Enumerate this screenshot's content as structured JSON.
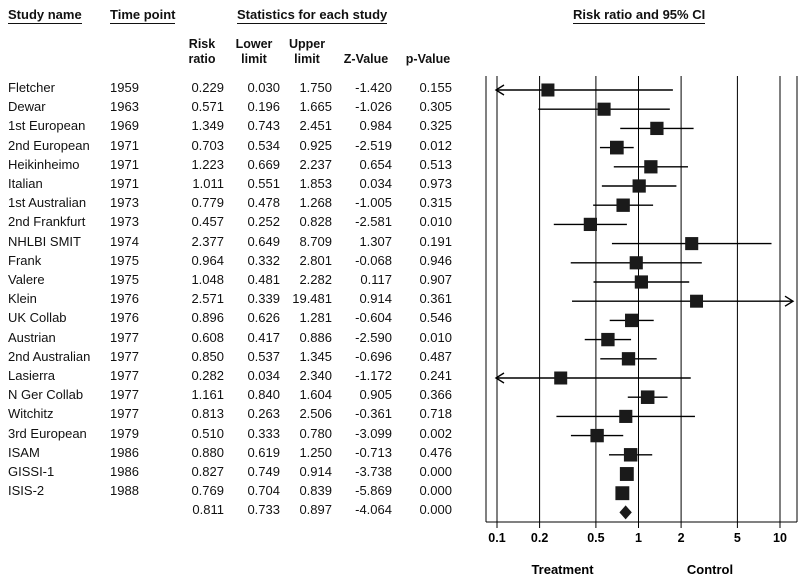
{
  "headers": {
    "study_name": "Study name",
    "time_point": "Time point",
    "statistics": "Statistics for each study",
    "risk_ratio_ci": "Risk ratio and 95% CI",
    "col_rr": [
      "Risk",
      "ratio"
    ],
    "col_lower": [
      "Lower",
      "limit"
    ],
    "col_upper": [
      "Upper",
      "limit"
    ],
    "col_z": "Z-Value",
    "col_p": "p-Value"
  },
  "rows": [
    {
      "name": "Fletcher",
      "year": "1959",
      "rr": "0.229",
      "lower": "0.030",
      "upper": "1.750",
      "z": "-1.420",
      "p": "0.155"
    },
    {
      "name": "Dewar",
      "year": "1963",
      "rr": "0.571",
      "lower": "0.196",
      "upper": "1.665",
      "z": "-1.026",
      "p": "0.305"
    },
    {
      "name": "1st European",
      "year": "1969",
      "rr": "1.349",
      "lower": "0.743",
      "upper": "2.451",
      "z": "0.984",
      "p": "0.325"
    },
    {
      "name": "2nd European",
      "year": "1971",
      "rr": "0.703",
      "lower": "0.534",
      "upper": "0.925",
      "z": "-2.519",
      "p": "0.012"
    },
    {
      "name": "Heikinheimo",
      "year": "1971",
      "rr": "1.223",
      "lower": "0.669",
      "upper": "2.237",
      "z": "0.654",
      "p": "0.513"
    },
    {
      "name": "Italian",
      "year": "1971",
      "rr": "1.011",
      "lower": "0.551",
      "upper": "1.853",
      "z": "0.034",
      "p": "0.973"
    },
    {
      "name": "1st Australian",
      "year": "1973",
      "rr": "0.779",
      "lower": "0.478",
      "upper": "1.268",
      "z": "-1.005",
      "p": "0.315"
    },
    {
      "name": "2nd Frankfurt",
      "year": "1973",
      "rr": "0.457",
      "lower": "0.252",
      "upper": "0.828",
      "z": "-2.581",
      "p": "0.010"
    },
    {
      "name": "NHLBI SMIT",
      "year": "1974",
      "rr": "2.377",
      "lower": "0.649",
      "upper": "8.709",
      "z": "1.307",
      "p": "0.191"
    },
    {
      "name": "Frank",
      "year": "1975",
      "rr": "0.964",
      "lower": "0.332",
      "upper": "2.801",
      "z": "-0.068",
      "p": "0.946"
    },
    {
      "name": "Valere",
      "year": "1975",
      "rr": "1.048",
      "lower": "0.481",
      "upper": "2.282",
      "z": "0.117",
      "p": "0.907"
    },
    {
      "name": "Klein",
      "year": "1976",
      "rr": "2.571",
      "lower": "0.339",
      "upper": "19.481",
      "z": "0.914",
      "p": "0.361"
    },
    {
      "name": "UK Collab",
      "year": "1976",
      "rr": "0.896",
      "lower": "0.626",
      "upper": "1.281",
      "z": "-0.604",
      "p": "0.546"
    },
    {
      "name": "Austrian",
      "year": "1977",
      "rr": "0.608",
      "lower": "0.417",
      "upper": "0.886",
      "z": "-2.590",
      "p": "0.010"
    },
    {
      "name": "2nd Australian",
      "year": "1977",
      "rr": "0.850",
      "lower": "0.537",
      "upper": "1.345",
      "z": "-0.696",
      "p": "0.487"
    },
    {
      "name": "Lasierra",
      "year": "1977",
      "rr": "0.282",
      "lower": "0.034",
      "upper": "2.340",
      "z": "-1.172",
      "p": "0.241"
    },
    {
      "name": "N Ger Collab",
      "year": "1977",
      "rr": "1.161",
      "lower": "0.840",
      "upper": "1.604",
      "z": "0.905",
      "p": "0.366"
    },
    {
      "name": "Witchitz",
      "year": "1977",
      "rr": "0.813",
      "lower": "0.263",
      "upper": "2.506",
      "z": "-0.361",
      "p": "0.718"
    },
    {
      "name": "3rd European",
      "year": "1979",
      "rr": "0.510",
      "lower": "0.333",
      "upper": "0.780",
      "z": "-3.099",
      "p": "0.002"
    },
    {
      "name": "ISAM",
      "year": "1986",
      "rr": "0.880",
      "lower": "0.619",
      "upper": "1.250",
      "z": "-0.713",
      "p": "0.476"
    },
    {
      "name": "GISSI-1",
      "year": "1986",
      "rr": "0.827",
      "lower": "0.749",
      "upper": "0.914",
      "z": "-3.738",
      "p": "0.000"
    },
    {
      "name": "ISIS-2",
      "year": "1988",
      "rr": "0.769",
      "lower": "0.704",
      "upper": "0.839",
      "z": "-5.869",
      "p": "0.000"
    },
    {
      "name": "",
      "year": "",
      "rr": "0.811",
      "lower": "0.733",
      "upper": "0.897",
      "z": "-4.064",
      "p": "0.000"
    }
  ],
  "chart_data": {
    "type": "forest",
    "scale": "log",
    "xlim": [
      0.1,
      10
    ],
    "reference_line": 1,
    "x_ticks": [
      "0.1",
      "0.2",
      "0.5",
      "1",
      "2",
      "5",
      "10"
    ],
    "x_tick_values": [
      0.1,
      0.2,
      0.5,
      1,
      2,
      5,
      10
    ],
    "left_label": "Treatment",
    "right_label": "Control",
    "title": "Risk ratio and 95% CI",
    "studies": [
      {
        "name": "Fletcher",
        "rr": 0.229,
        "lower": 0.03,
        "upper": 1.75,
        "weight": 2.2
      },
      {
        "name": "Dewar",
        "rr": 0.571,
        "lower": 0.196,
        "upper": 1.665,
        "weight": 2.7
      },
      {
        "name": "1st European",
        "rr": 1.349,
        "lower": 0.743,
        "upper": 2.451,
        "weight": 3.8
      },
      {
        "name": "2nd European",
        "rr": 0.703,
        "lower": 0.534,
        "upper": 0.925,
        "weight": 6.5
      },
      {
        "name": "Heikinheimo",
        "rr": 1.223,
        "lower": 0.669,
        "upper": 2.237,
        "weight": 3.7
      },
      {
        "name": "Italian",
        "rr": 1.011,
        "lower": 0.551,
        "upper": 1.853,
        "weight": 3.6
      },
      {
        "name": "1st Australian",
        "rr": 0.779,
        "lower": 0.478,
        "upper": 1.268,
        "weight": 4.4
      },
      {
        "name": "2nd Frankfurt",
        "rr": 0.457,
        "lower": 0.252,
        "upper": 0.828,
        "weight": 3.6
      },
      {
        "name": "NHLBI SMIT",
        "rr": 2.377,
        "lower": 0.649,
        "upper": 8.709,
        "weight": 2.4
      },
      {
        "name": "Frank",
        "rr": 0.964,
        "lower": 0.332,
        "upper": 2.801,
        "weight": 3.0
      },
      {
        "name": "Valere",
        "rr": 1.048,
        "lower": 0.481,
        "upper": 2.282,
        "weight": 3.4
      },
      {
        "name": "Klein",
        "rr": 2.571,
        "lower": 0.339,
        "upper": 19.481,
        "weight": 1.8
      },
      {
        "name": "UK Collab",
        "rr": 0.896,
        "lower": 0.626,
        "upper": 1.281,
        "weight": 5.0
      },
      {
        "name": "Austrian",
        "rr": 0.608,
        "lower": 0.417,
        "upper": 0.886,
        "weight": 4.4
      },
      {
        "name": "2nd Australian",
        "rr": 0.85,
        "lower": 0.537,
        "upper": 1.345,
        "weight": 4.2
      },
      {
        "name": "Lasierra",
        "rr": 0.282,
        "lower": 0.034,
        "upper": 2.34,
        "weight": 2.0
      },
      {
        "name": "N Ger Collab",
        "rr": 1.161,
        "lower": 0.84,
        "upper": 1.604,
        "weight": 5.6
      },
      {
        "name": "Witchitz",
        "rr": 0.813,
        "lower": 0.263,
        "upper": 2.506,
        "weight": 2.8
      },
      {
        "name": "3rd European",
        "rr": 0.51,
        "lower": 0.333,
        "upper": 0.78,
        "weight": 4.6
      },
      {
        "name": "ISAM",
        "rr": 0.88,
        "lower": 0.619,
        "upper": 1.25,
        "weight": 5.0
      },
      {
        "name": "GISSI-1",
        "rr": 0.827,
        "lower": 0.749,
        "upper": 0.914,
        "weight": 8.0
      },
      {
        "name": "ISIS-2",
        "rr": 0.769,
        "lower": 0.704,
        "upper": 0.839,
        "weight": 8.0
      }
    ],
    "summary": {
      "rr": 0.811,
      "lower": 0.733,
      "upper": 0.897
    }
  }
}
